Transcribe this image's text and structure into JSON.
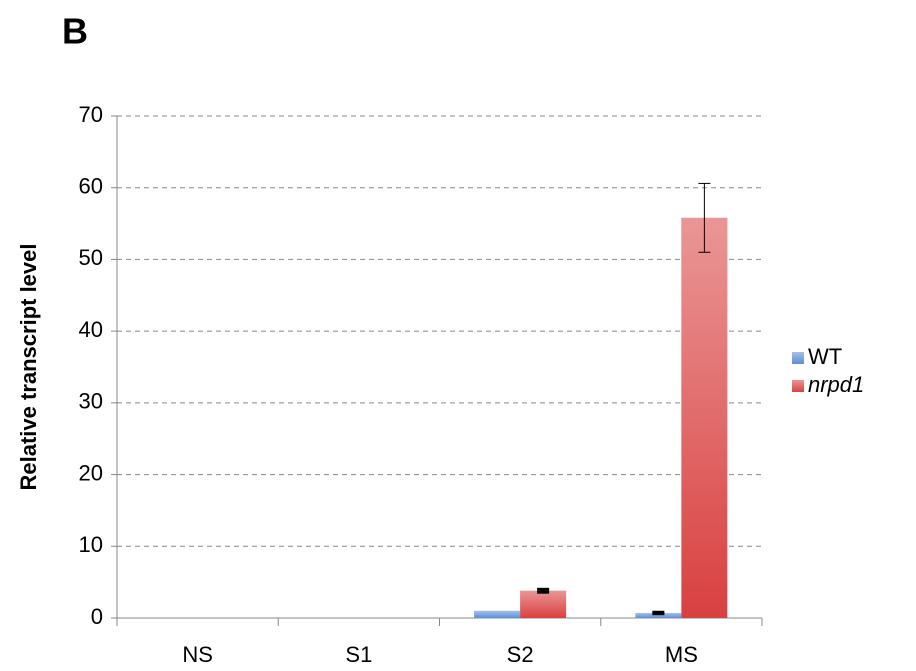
{
  "panel_label": "B",
  "chart_data": {
    "type": "bar",
    "ylabel": "Relative transcript level",
    "categories": [
      "NS",
      "S1",
      "S2",
      "MS"
    ],
    "series": [
      {
        "name": "WT",
        "color": "#5b8fd6",
        "values": [
          0,
          0,
          1.0,
          0.7
        ],
        "errors": [
          0,
          0,
          0,
          0.1
        ]
      },
      {
        "name": "nrpd1",
        "color": "#d94040",
        "values": [
          0,
          0,
          3.8,
          55.8
        ],
        "errors": [
          0,
          0,
          0.2,
          4.8
        ]
      }
    ],
    "ylim": [
      0,
      70
    ],
    "yticks": [
      0,
      10,
      20,
      30,
      40,
      50,
      60,
      70
    ],
    "grid": true,
    "legend": "right"
  }
}
